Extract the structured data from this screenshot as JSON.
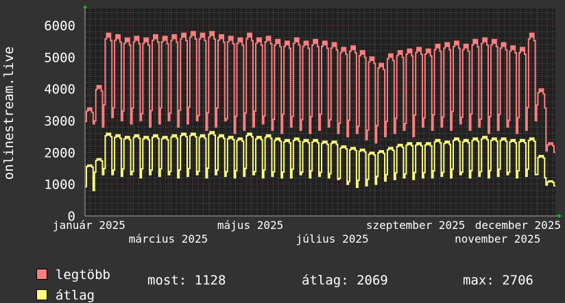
{
  "chart_data": {
    "type": "line",
    "ylabel": "onlinestream.live",
    "ylim": [
      0,
      6000
    ],
    "yticks": [
      0,
      1000,
      2000,
      3000,
      4000,
      5000,
      6000
    ],
    "xlim": [
      "2024-12-29",
      "2025-12-14"
    ],
    "start_date": "2024-12-29",
    "xticks": [
      {
        "date": "2025-01-01",
        "label": "január 2025"
      },
      {
        "date": "2025-03-01",
        "label": "március 2025"
      },
      {
        "date": "2025-05-01",
        "label": "május 2025"
      },
      {
        "date": "2025-07-01",
        "label": "július 2025"
      },
      {
        "date": "2025-09-01",
        "label": "szeptember 2025"
      },
      {
        "date": "2025-11-01",
        "label": "november 2025"
      },
      {
        "date": "2025-12-01",
        "label": "december 2025"
      }
    ],
    "grid": true,
    "legend_placement": "bottom-left",
    "series": [
      {
        "name": "legtöbb",
        "color": "#ff7f7f",
        "weekday_peak": [
          3400,
          4100,
          5750,
          5700,
          5600,
          5650,
          5600,
          5700,
          5650,
          5700,
          5750,
          5800,
          5750,
          5800,
          5700,
          5650,
          5600,
          5750,
          5600,
          5650,
          5550,
          5500,
          5600,
          5500,
          5550,
          5500,
          5450,
          5300,
          5350,
          5200,
          5000,
          4800,
          5100,
          5200,
          5250,
          5300,
          5250,
          5400,
          5450,
          5500,
          5400,
          5550,
          5600,
          5550,
          5450,
          5350,
          5300,
          5750,
          4000,
          2300
        ],
        "weekend_low": [
          2900,
          2800,
          3100,
          3000,
          2900,
          3000,
          2800,
          2900,
          3000,
          2800,
          2900,
          3000,
          2700,
          2800,
          3000,
          2600,
          2700,
          2800,
          2900,
          2700,
          2600,
          2800,
          2700,
          2600,
          2700,
          2800,
          2600,
          2500,
          2600,
          2400,
          2300,
          2500,
          2600,
          2700,
          2500,
          2800,
          2700,
          2800,
          2700,
          2900,
          2700,
          2800,
          2600,
          2700,
          2800,
          2600,
          2700,
          3000,
          3400,
          2000
        ]
      },
      {
        "name": "átlag",
        "color": "#ffff7f",
        "weekday_peak": [
          1600,
          1800,
          2600,
          2550,
          2500,
          2550,
          2500,
          2550,
          2500,
          2550,
          2600,
          2600,
          2550,
          2650,
          2550,
          2500,
          2450,
          2600,
          2500,
          2550,
          2450,
          2400,
          2450,
          2400,
          2400,
          2350,
          2350,
          2200,
          2150,
          2100,
          2000,
          2050,
          2150,
          2250,
          2300,
          2300,
          2300,
          2400,
          2350,
          2450,
          2400,
          2450,
          2500,
          2450,
          2450,
          2400,
          2400,
          2450,
          1900,
          1100
        ],
        "weekend_low": [
          800,
          1300,
          1300,
          1250,
          1300,
          1200,
          1300,
          1250,
          1300,
          1200,
          1250,
          1300,
          1200,
          1300,
          1250,
          1200,
          1250,
          1300,
          1200,
          1250,
          1200,
          1200,
          1300,
          1200,
          1250,
          1200,
          1150,
          1000,
          900,
          950,
          1000,
          1100,
          1150,
          1200,
          1150,
          1200,
          1200,
          1250,
          1200,
          1300,
          1200,
          1250,
          1200,
          1250,
          1300,
          1200,
          1250,
          1300,
          1200,
          950
        ]
      }
    ],
    "legend": {
      "items": [
        {
          "label": "legtöbb",
          "color": "#ff7f7f"
        },
        {
          "label": "átlag",
          "color": "#ffff7f"
        }
      ],
      "stats": {
        "now": "most: 1128",
        "avg": "átlag: 2069",
        "max": "max: 2706"
      }
    },
    "colors": {
      "background": "#323232",
      "plot_background": "#212121",
      "minor_grid": "#5a5a5a",
      "major_grid": "#7a3a3a",
      "axis_arrow": "#00cc00"
    }
  }
}
